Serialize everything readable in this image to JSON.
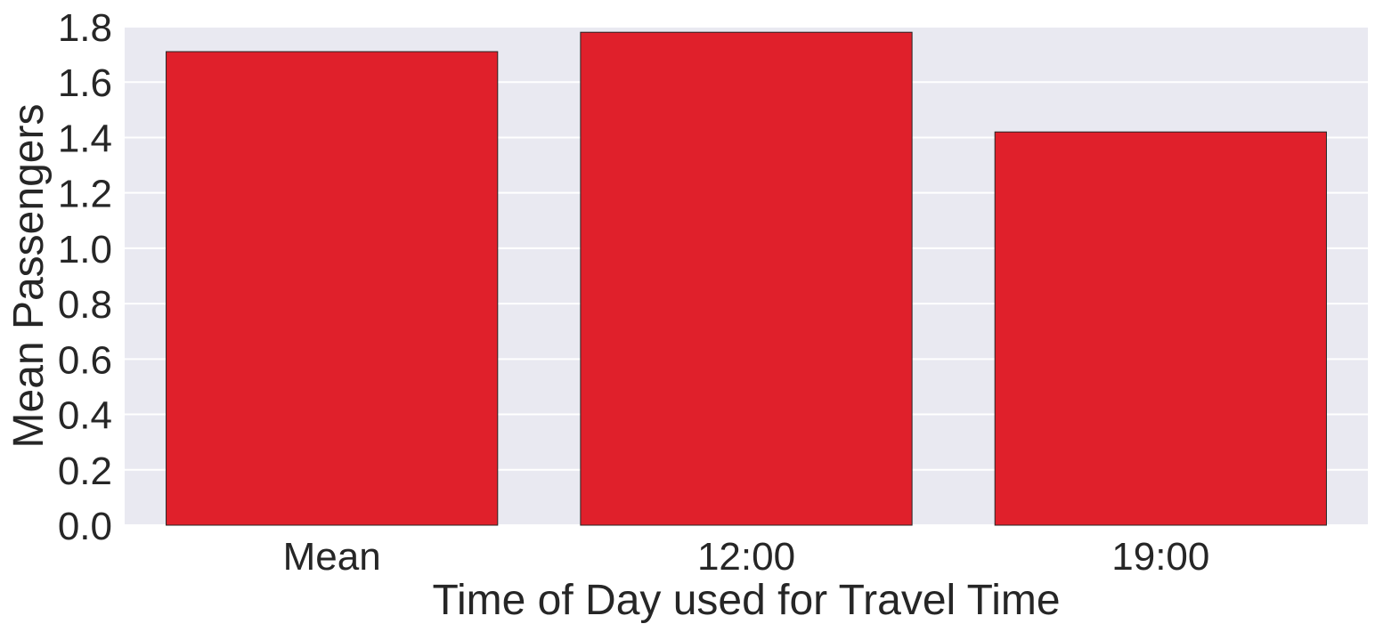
{
  "chart_data": {
    "type": "bar",
    "title": "",
    "xlabel": "Time of Day used for Travel Time",
    "ylabel": "Mean Passengers",
    "categories": [
      "Mean",
      "12:00",
      "19:00"
    ],
    "values": [
      1.71,
      1.78,
      1.42
    ],
    "ylim": [
      0,
      1.8
    ],
    "yticks": [
      "0.0",
      "0.2",
      "0.4",
      "0.6",
      "0.8",
      "1.0",
      "1.2",
      "1.4",
      "1.6",
      "1.8"
    ],
    "grid": true,
    "legend": "none"
  },
  "colors": {
    "bar": "#e0202b",
    "bar_edge": "#262626",
    "plot_background": "#e9e9f1",
    "grid": "#ffffff",
    "text": "#262626"
  }
}
